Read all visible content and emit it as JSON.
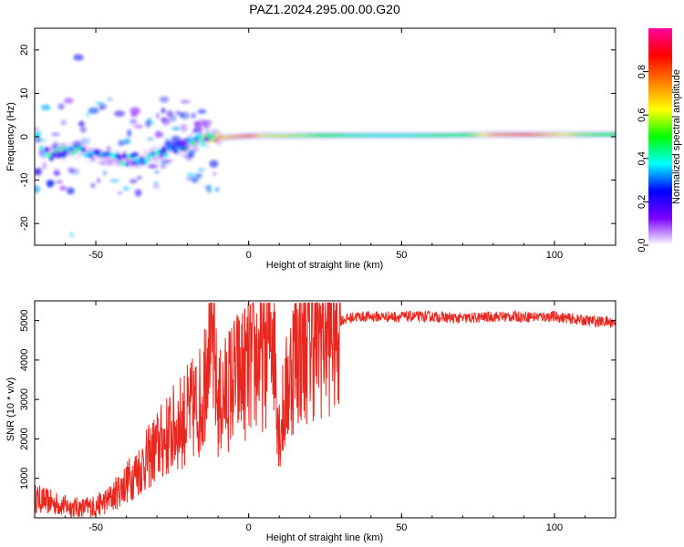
{
  "title": "PAZ1.2024.295.00.00.G20",
  "chart_data": [
    {
      "type": "heatmap",
      "xlabel": "Height of straight line (km)",
      "ylabel": "Frequency (Hz)",
      "xlim": [
        -70,
        120
      ],
      "ylim": [
        -25,
        25
      ],
      "xticks": [
        "-50",
        "0",
        "50",
        "100"
      ],
      "xtick_values": [
        -50,
        0,
        50,
        100
      ],
      "yticks": [
        "20",
        "10",
        "0",
        "-10",
        "-20"
      ],
      "ytick_values": [
        20,
        10,
        0,
        -10,
        -20
      ],
      "colorbar": {
        "label": "Normalized spectral amplitude",
        "range": [
          0,
          1
        ],
        "ticks": [
          "0.0",
          "0.2",
          "0.4",
          "0.6",
          "0.8"
        ],
        "tick_values": [
          0.0,
          0.2,
          0.4,
          0.6,
          0.8
        ],
        "colormap": [
          "#ffffff",
          "#7a00ff",
          "#0000ff",
          "#00ffff",
          "#00ff00",
          "#ffff00",
          "#ff8000",
          "#ff0000",
          "#ff00a0"
        ]
      },
      "ridge": [
        {
          "x": -69,
          "freq": -3.5,
          "amp": 0.35
        },
        {
          "x": -65,
          "freq": -4.0,
          "amp": 0.4
        },
        {
          "x": -60,
          "freq": -3.5,
          "amp": 0.45
        },
        {
          "x": -55,
          "freq": -3.0,
          "amp": 0.4
        },
        {
          "x": -50,
          "freq": -4.5,
          "amp": 0.35
        },
        {
          "x": -45,
          "freq": -5.0,
          "amp": 0.35
        },
        {
          "x": -40,
          "freq": -5.5,
          "amp": 0.4
        },
        {
          "x": -35,
          "freq": -5.0,
          "amp": 0.4
        },
        {
          "x": -30,
          "freq": -4.0,
          "amp": 0.35
        },
        {
          "x": -25,
          "freq": -2.5,
          "amp": 0.4
        },
        {
          "x": -20,
          "freq": -1.5,
          "amp": 0.45
        },
        {
          "x": -15,
          "freq": -0.5,
          "amp": 0.55
        },
        {
          "x": -10,
          "freq": -0.3,
          "amp": 0.65
        },
        {
          "x": -5,
          "freq": 0.0,
          "amp": 0.7
        },
        {
          "x": 0,
          "freq": 0.2,
          "amp": 0.75
        },
        {
          "x": 5,
          "freq": 0.3,
          "amp": 0.6
        },
        {
          "x": 10,
          "freq": 0.2,
          "amp": 0.6
        },
        {
          "x": 20,
          "freq": 0.3,
          "amp": 0.55
        },
        {
          "x": 30,
          "freq": 0.3,
          "amp": 0.45
        },
        {
          "x": 40,
          "freq": 0.3,
          "amp": 0.4
        },
        {
          "x": 50,
          "freq": 0.3,
          "amp": 0.4
        },
        {
          "x": 60,
          "freq": 0.3,
          "amp": 0.45
        },
        {
          "x": 70,
          "freq": 0.4,
          "amp": 0.5
        },
        {
          "x": 80,
          "freq": 0.5,
          "amp": 0.7
        },
        {
          "x": 90,
          "freq": 0.5,
          "amp": 0.75
        },
        {
          "x": 100,
          "freq": 0.5,
          "amp": 0.65
        },
        {
          "x": 110,
          "freq": 0.5,
          "amp": 0.55
        },
        {
          "x": 120,
          "freq": 0.5,
          "amp": 0.5
        }
      ]
    },
    {
      "type": "line",
      "xlabel": "Height of straight line (km)",
      "ylabel": "SNR (10 * v/v)",
      "xlim": [
        -70,
        120
      ],
      "ylim": [
        0,
        5500
      ],
      "xticks": [
        "-50",
        "0",
        "50",
        "100"
      ],
      "xtick_values": [
        -50,
        0,
        50,
        100
      ],
      "yticks": [
        "1000",
        "2000",
        "3000",
        "4000",
        "5000"
      ],
      "ytick_values": [
        1000,
        2000,
        3000,
        4000,
        5000
      ],
      "color": "#e8271f",
      "series": [
        {
          "x": [
            -70,
            -65,
            -60,
            -55,
            -50,
            -45,
            -40,
            -35,
            -30,
            -25,
            -20,
            -15,
            -13,
            -10,
            -5,
            0,
            5,
            8,
            10,
            15,
            20,
            25,
            30,
            35,
            40,
            50,
            60,
            70,
            80,
            90,
            100,
            110,
            120
          ],
          "y": [
            500,
            400,
            300,
            250,
            300,
            500,
            900,
            1300,
            1800,
            2200,
            2600,
            3000,
            5300,
            2800,
            3500,
            3800,
            4200,
            5000,
            2200,
            4200,
            4600,
            4800,
            5000,
            5100,
            5100,
            5100,
            5100,
            5050,
            5100,
            5100,
            5100,
            5000,
            4950
          ]
        }
      ]
    }
  ]
}
